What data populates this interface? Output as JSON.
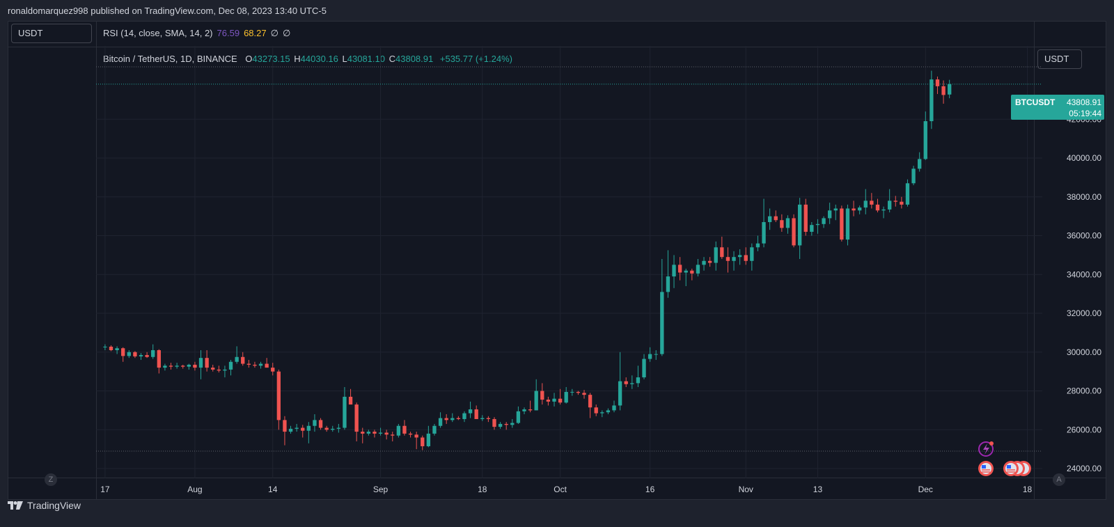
{
  "header": {
    "published_text": "ronaldomarquez998 published on TradingView.com, Dec 08, 2023 13:40 UTC-5"
  },
  "rsi_pane": {
    "unit_label": "USDT",
    "legend": "RSI (14, close, SMA, 14, 2)",
    "value_rsi": "76.59",
    "value_sma": "68.27",
    "placeholders": [
      "∅",
      "∅"
    ]
  },
  "main_pane": {
    "symbol": "Bitcoin / TetherUS, 1D, BINANCE",
    "open_label": "O",
    "open": "43273.15",
    "high_label": "H",
    "high": "44030.16",
    "low_label": "L",
    "low": "43081.10",
    "close_label": "C",
    "close": "43808.91",
    "change": "+535.77 (+1.24%)",
    "unit_label": "USDT",
    "price_tag_symbol": "BTCUSDT",
    "price_tag_value": "43808.91",
    "countdown": "05:19:44"
  },
  "time_axis": {
    "left_badge": "Z",
    "right_badge": "A"
  },
  "footer": {
    "brand": "TradingView"
  },
  "colors": {
    "up": "#26a69a",
    "down": "#ef5350",
    "background": "#131722",
    "grid": "#1f2330",
    "text": "#d1d4dc",
    "rsi": "#7e57c2",
    "rsi_sma": "#fbc02d"
  },
  "chart_data": {
    "type": "candlestick",
    "symbol": "BTCUSDT",
    "interval": "1D",
    "ylim": [
      23500,
      44700
    ],
    "y_ticks": [
      24000,
      26000,
      28000,
      30000,
      32000,
      34000,
      36000,
      38000,
      40000,
      42000
    ],
    "y_tick_labels": [
      "24000.00",
      "26000.00",
      "28000.00",
      "30000.00",
      "32000.00",
      "34000.00",
      "36000.00",
      "38000.00",
      "40000.00",
      "42000.00"
    ],
    "x_ticks": [
      {
        "label": "17",
        "day": 0
      },
      {
        "label": "Aug",
        "day": 15
      },
      {
        "label": "14",
        "day": 28
      },
      {
        "label": "Sep",
        "day": 46
      },
      {
        "label": "18",
        "day": 63
      },
      {
        "label": "Oct",
        "day": 76
      },
      {
        "label": "16",
        "day": 91
      },
      {
        "label": "Nov",
        "day": 107
      },
      {
        "label": "13",
        "day": 119
      },
      {
        "label": "Dec",
        "day": 137
      },
      {
        "label": "18",
        "day": 154
      }
    ],
    "x_range_days": [
      -1.5,
      156.5
    ],
    "last_price": 43808.91,
    "reference_lines": [
      44700,
      24900
    ],
    "candles": [
      [
        30250,
        30400,
        30100,
        30280
      ],
      [
        30280,
        30350,
        30050,
        30100
      ],
      [
        30100,
        30300,
        29900,
        30200
      ],
      [
        30200,
        30250,
        29500,
        29800
      ],
      [
        29800,
        30100,
        29700,
        30000
      ],
      [
        30000,
        30050,
        29700,
        29780
      ],
      [
        29780,
        29950,
        29600,
        29850
      ],
      [
        29850,
        30000,
        29700,
        29750
      ],
      [
        29750,
        30400,
        29650,
        30100
      ],
      [
        30100,
        30150,
        28900,
        29200
      ],
      [
        29200,
        29400,
        29050,
        29300
      ],
      [
        29300,
        29450,
        29100,
        29250
      ],
      [
        29250,
        29450,
        29150,
        29300
      ],
      [
        29300,
        29350,
        29150,
        29250
      ],
      [
        29250,
        29400,
        29100,
        29350
      ],
      [
        29350,
        29500,
        29050,
        29200
      ],
      [
        29200,
        30100,
        28600,
        29700
      ],
      [
        29700,
        30100,
        29000,
        29200
      ],
      [
        29200,
        29350,
        29000,
        29100
      ],
      [
        29100,
        29300,
        28950,
        29050
      ],
      [
        29050,
        29300,
        28700,
        29100
      ],
      [
        29100,
        29600,
        28800,
        29500
      ],
      [
        29500,
        30300,
        29400,
        29750
      ],
      [
        29750,
        30000,
        29300,
        29400
      ],
      [
        29400,
        29600,
        29200,
        29350
      ],
      [
        29350,
        29500,
        29200,
        29300
      ],
      [
        29300,
        29500,
        29150,
        29400
      ],
      [
        29400,
        29700,
        29200,
        29200
      ],
      [
        29200,
        29450,
        28800,
        29000
      ],
      [
        29000,
        29100,
        26000,
        26500
      ],
      [
        26500,
        26700,
        25200,
        25900
      ],
      [
        25900,
        26200,
        25800,
        26050
      ],
      [
        26050,
        26300,
        25900,
        26100
      ],
      [
        26100,
        26250,
        25600,
        25950
      ],
      [
        25950,
        26400,
        25300,
        26200
      ],
      [
        26200,
        26800,
        25900,
        26500
      ],
      [
        26500,
        26600,
        26000,
        26100
      ],
      [
        26100,
        26200,
        25900,
        26000
      ],
      [
        26000,
        26200,
        25900,
        26050
      ],
      [
        26050,
        26300,
        25850,
        26100
      ],
      [
        26100,
        28200,
        26000,
        27700
      ],
      [
        27700,
        28100,
        27500,
        27300
      ],
      [
        27300,
        27400,
        25400,
        25900
      ],
      [
        25900,
        26100,
        25300,
        25800
      ],
      [
        25800,
        26000,
        25700,
        25900
      ],
      [
        25900,
        26000,
        25600,
        25800
      ],
      [
        25800,
        26100,
        25700,
        25850
      ],
      [
        25850,
        26000,
        25500,
        25750
      ],
      [
        25750,
        25900,
        25400,
        25700
      ],
      [
        25700,
        26300,
        25600,
        26200
      ],
      [
        26200,
        26500,
        25700,
        25800
      ],
      [
        25800,
        25900,
        25600,
        25750
      ],
      [
        25750,
        25900,
        25000,
        25600
      ],
      [
        25600,
        25700,
        24950,
        25150
      ],
      [
        25150,
        26200,
        25100,
        25800
      ],
      [
        25800,
        26300,
        25700,
        26200
      ],
      [
        26200,
        26900,
        26100,
        26600
      ],
      [
        26600,
        26800,
        26300,
        26500
      ],
      [
        26500,
        26850,
        26400,
        26600
      ],
      [
        26600,
        26700,
        26500,
        26550
      ],
      [
        26550,
        26950,
        26400,
        26850
      ],
      [
        26850,
        27450,
        26600,
        27050
      ],
      [
        27050,
        27250,
        26600,
        26550
      ],
      [
        26550,
        26750,
        26450,
        26600
      ],
      [
        26600,
        26700,
        26400,
        26550
      ],
      [
        26550,
        26650,
        26000,
        26150
      ],
      [
        26150,
        26400,
        26050,
        26300
      ],
      [
        26300,
        26400,
        26000,
        26250
      ],
      [
        26250,
        26550,
        26100,
        26350
      ],
      [
        26350,
        27200,
        26300,
        26950
      ],
      [
        26950,
        27150,
        26800,
        27050
      ],
      [
        27050,
        27500,
        26900,
        27000
      ],
      [
        27000,
        28600,
        27000,
        28000
      ],
      [
        28000,
        28400,
        27300,
        27550
      ],
      [
        27550,
        27700,
        27250,
        27450
      ],
      [
        27450,
        27900,
        27200,
        27600
      ],
      [
        27600,
        28100,
        27300,
        27400
      ],
      [
        27400,
        28200,
        27350,
        27950
      ],
      [
        27950,
        28100,
        27750,
        27950
      ],
      [
        27950,
        28000,
        27800,
        27900
      ],
      [
        27900,
        28050,
        27600,
        27800
      ],
      [
        27800,
        27900,
        26600,
        27150
      ],
      [
        27150,
        27300,
        26700,
        26850
      ],
      [
        26850,
        27000,
        26650,
        26900
      ],
      [
        26900,
        27100,
        26800,
        27000
      ],
      [
        27000,
        27500,
        26900,
        27250
      ],
      [
        27250,
        30000,
        27000,
        28500
      ],
      [
        28500,
        28700,
        28200,
        28350
      ],
      [
        28350,
        28800,
        28100,
        28400
      ],
      [
        28400,
        29300,
        28200,
        28700
      ],
      [
        28700,
        29900,
        28600,
        29650
      ],
      [
        29650,
        30250,
        29500,
        29900
      ],
      [
        29900,
        30100,
        29600,
        29900
      ],
      [
        29900,
        34800,
        29800,
        33100
      ],
      [
        33100,
        35250,
        32800,
        33900
      ],
      [
        33900,
        35000,
        33300,
        34500
      ],
      [
        34500,
        34900,
        33700,
        34100
      ],
      [
        34100,
        34300,
        33400,
        34200
      ],
      [
        34200,
        34300,
        33700,
        34050
      ],
      [
        34050,
        34800,
        33900,
        34500
      ],
      [
        34500,
        34900,
        34200,
        34700
      ],
      [
        34700,
        34900,
        34400,
        34600
      ],
      [
        34600,
        35700,
        34200,
        35400
      ],
      [
        35400,
        35950,
        34800,
        34900
      ],
      [
        34900,
        35400,
        34100,
        34700
      ],
      [
        34700,
        35200,
        34200,
        34900
      ],
      [
        34900,
        35300,
        34500,
        35000
      ],
      [
        35000,
        35400,
        34500,
        34700
      ],
      [
        34700,
        35600,
        34200,
        35400
      ],
      [
        35400,
        36000,
        35200,
        35600
      ],
      [
        35600,
        37900,
        35400,
        36700
      ],
      [
        36700,
        37400,
        36300,
        37000
      ],
      [
        37000,
        37300,
        36700,
        36800
      ],
      [
        36800,
        37100,
        36200,
        36400
      ],
      [
        36400,
        37050,
        36100,
        36900
      ],
      [
        36900,
        37100,
        35400,
        35500
      ],
      [
        35500,
        37950,
        34800,
        37600
      ],
      [
        37600,
        37900,
        36000,
        36200
      ],
      [
        36200,
        36700,
        36000,
        36550
      ],
      [
        36550,
        36850,
        36100,
        36600
      ],
      [
        36600,
        37000,
        36400,
        36900
      ],
      [
        36900,
        37700,
        36600,
        37300
      ],
      [
        37300,
        37600,
        36800,
        37400
      ],
      [
        37400,
        37550,
        35700,
        35800
      ],
      [
        35800,
        37600,
        35500,
        37400
      ],
      [
        37400,
        37800,
        37000,
        37300
      ],
      [
        37300,
        37550,
        37100,
        37450
      ],
      [
        37450,
        38400,
        37100,
        37800
      ],
      [
        37800,
        38200,
        37400,
        37600
      ],
      [
        37600,
        37900,
        37200,
        37300
      ],
      [
        37300,
        37500,
        36900,
        37350
      ],
      [
        37350,
        38400,
        37200,
        37800
      ],
      [
        37800,
        38050,
        37500,
        37750
      ],
      [
        37750,
        38000,
        37400,
        37600
      ],
      [
        37600,
        38900,
        37500,
        38700
      ],
      [
        38700,
        39600,
        38600,
        39450
      ],
      [
        39450,
        40300,
        39300,
        39950
      ],
      [
        39950,
        42400,
        39900,
        41900
      ],
      [
        41900,
        44500,
        41500,
        44050
      ],
      [
        44050,
        44200,
        43300,
        43700
      ],
      [
        43700,
        44000,
        42800,
        43250
      ],
      [
        43273.15,
        44030.16,
        43081.1,
        43808.91
      ]
    ]
  }
}
